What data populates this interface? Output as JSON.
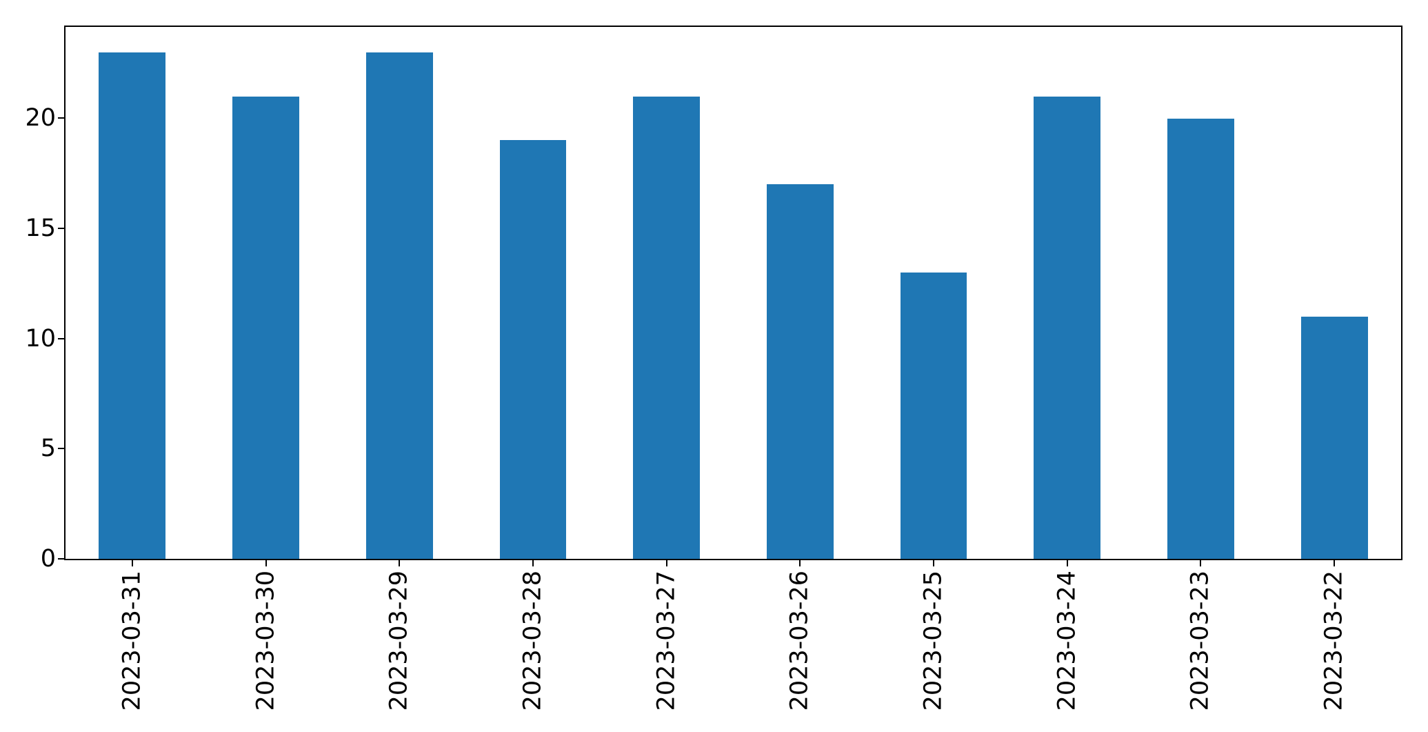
{
  "chart_data": {
    "type": "bar",
    "title": "",
    "xlabel": "",
    "ylabel": "",
    "categories": [
      "2023-03-31",
      "2023-03-30",
      "2023-03-29",
      "2023-03-28",
      "2023-03-27",
      "2023-03-26",
      "2023-03-25",
      "2023-03-24",
      "2023-03-23",
      "2023-03-22"
    ],
    "values": [
      23,
      21,
      23,
      19,
      21,
      17,
      13,
      21,
      20,
      11
    ],
    "ylim": [
      0,
      24.15
    ],
    "yticks": [
      0,
      5,
      10,
      15,
      20
    ],
    "x_tick_rotation": 90,
    "bar_width_fraction": 0.5,
    "grid": false,
    "legend": null,
    "colors": {
      "bar": "#1f77b4",
      "axis": "#000000",
      "background": "#ffffff"
    }
  }
}
